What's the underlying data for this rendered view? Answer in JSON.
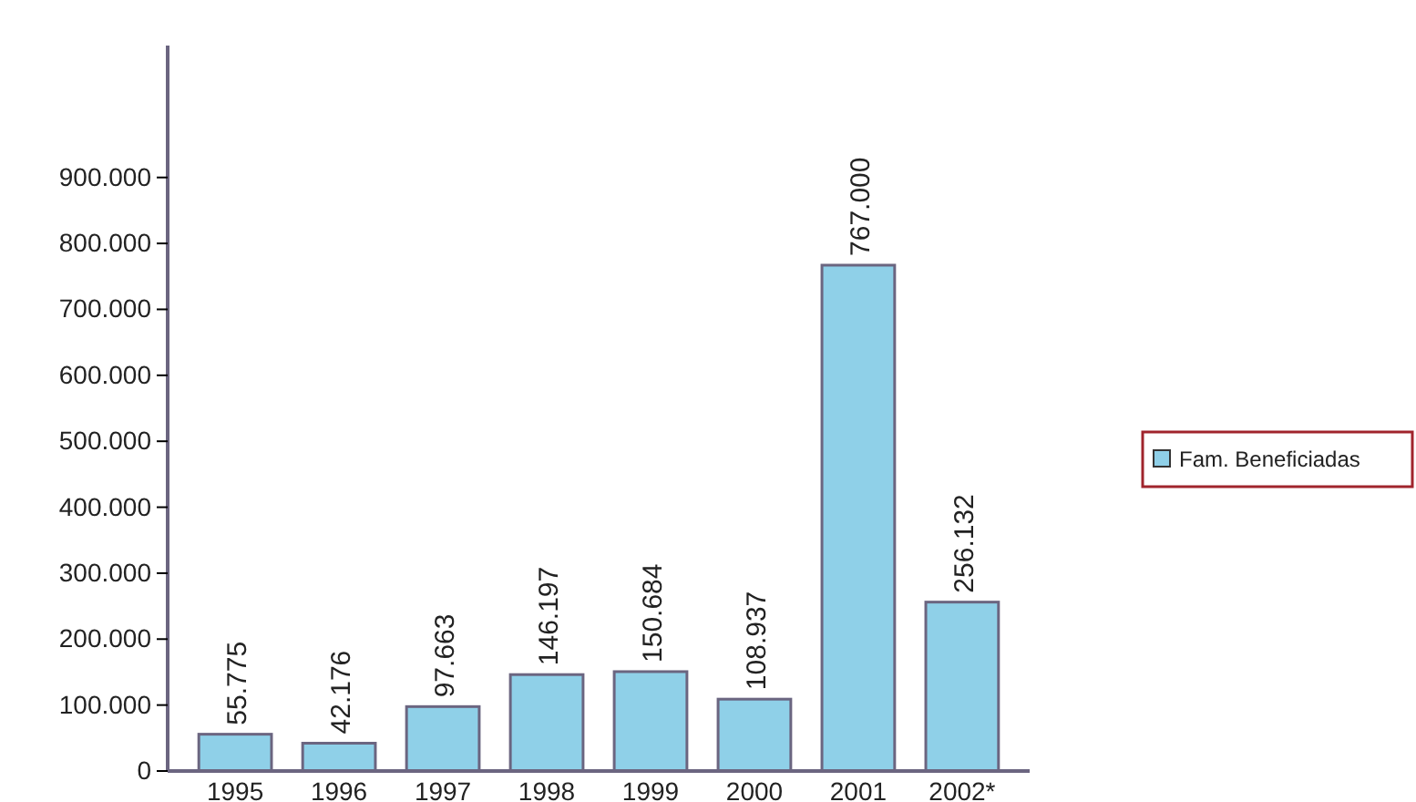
{
  "chart_data": {
    "type": "bar",
    "categories": [
      "1995",
      "1996",
      "1997",
      "1998",
      "1999",
      "2000",
      "2001",
      "2002*"
    ],
    "series": [
      {
        "name": "Fam. Beneficiadas",
        "color": "#8fd0e8",
        "values": [
          55775,
          42176,
          97663,
          146197,
          150684,
          108937,
          767000,
          256132
        ],
        "value_labels": [
          "55.775",
          "42.176",
          "97.663",
          "146.197",
          "150.684",
          "108.937",
          "767.000",
          "256.132"
        ]
      }
    ],
    "ylim": [
      0,
      1100000
    ],
    "yticks": [
      0,
      {
        "value": 100000,
        "label": "100.000"
      },
      {
        "value": 200000,
        "label": "200.000"
      },
      {
        "value": 300000,
        "label": "300.000"
      },
      {
        "value": 400000,
        "label": "400.000"
      },
      {
        "value": 500000,
        "label": "500.000"
      },
      {
        "value": 600000,
        "label": "600.000"
      },
      {
        "value": 700000,
        "label": "700.000"
      },
      {
        "value": 800000,
        "label": "800.000"
      },
      {
        "value": 900000,
        "label": "900.000"
      }
    ],
    "legend": "right",
    "grid": false
  }
}
